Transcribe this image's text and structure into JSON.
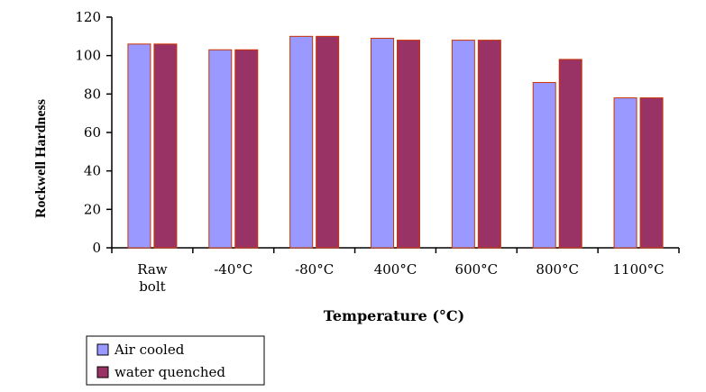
{
  "chart_data": {
    "type": "bar",
    "title": "",
    "xlabel": "Temperature (°C)",
    "ylabel": "Rockwell Hardness",
    "ylim": [
      0,
      120
    ],
    "yticks": [
      "0",
      "20",
      "40",
      "60",
      "80",
      "100",
      "120"
    ],
    "categories": [
      [
        "Raw",
        "bolt"
      ],
      [
        "-40°C"
      ],
      [
        "-80°C"
      ],
      [
        "400°C"
      ],
      [
        "600°C"
      ],
      [
        "800°C"
      ],
      [
        "1100°C"
      ]
    ],
    "series": [
      {
        "name": "Air cooled",
        "color": "#9999ff",
        "values": [
          106,
          103,
          110,
          109,
          108,
          86,
          78
        ]
      },
      {
        "name": "water quenched",
        "color": "#993366",
        "values": [
          106,
          103,
          110,
          108,
          108,
          98,
          78
        ]
      }
    ],
    "legend_position": "bottom-left",
    "colors": {
      "bar_outline": "#cc3300"
    }
  }
}
